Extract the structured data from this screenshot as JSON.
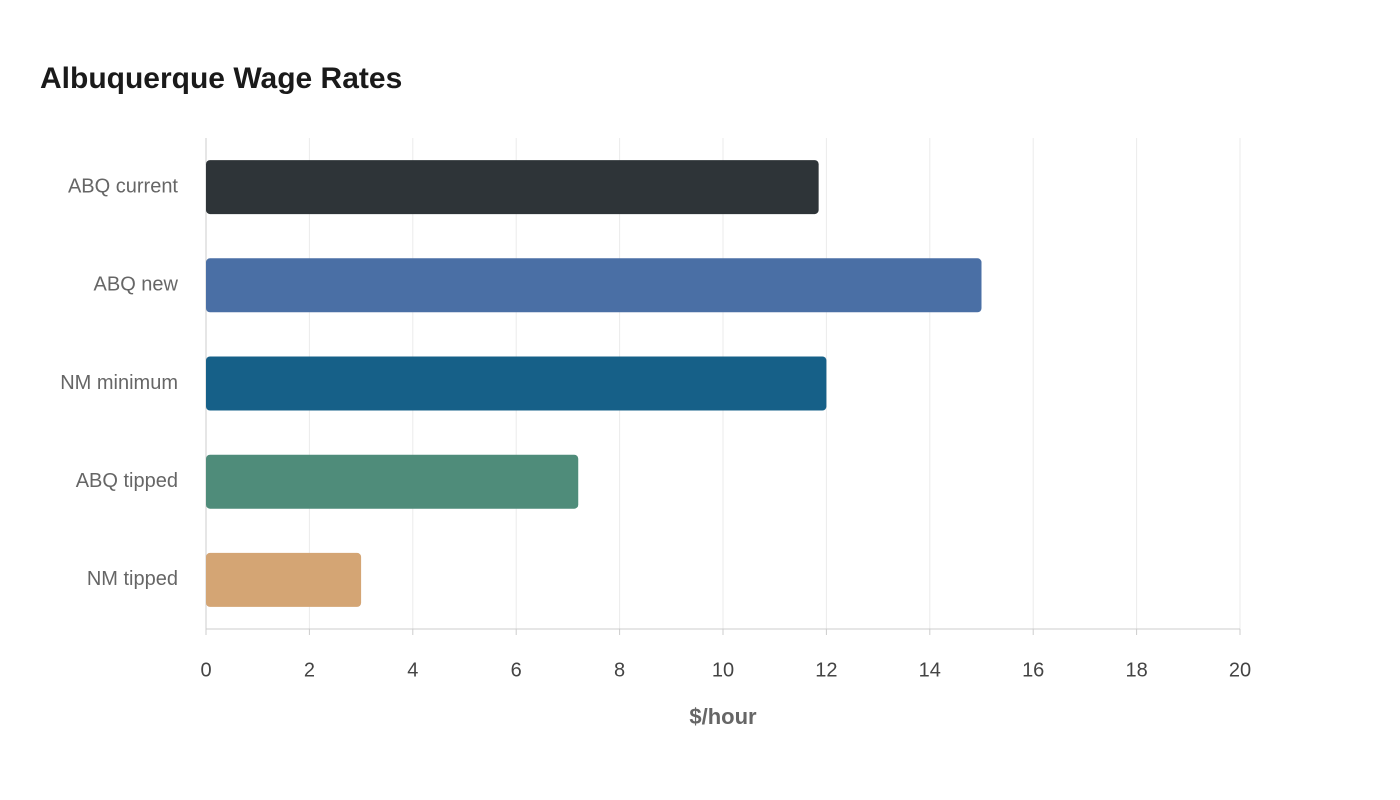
{
  "chart_data": {
    "type": "bar",
    "orientation": "horizontal",
    "title": "Albuquerque Wage Rates",
    "categories": [
      "ABQ current",
      "ABQ new",
      "NM minimum",
      "ABQ tipped",
      "NM tipped"
    ],
    "values": [
      11.85,
      15,
      12,
      7.2,
      3
    ],
    "colors": [
      "#2e3438",
      "#4a6fa5",
      "#166088",
      "#4f8c7a",
      "#d4a574"
    ],
    "xlabel": "$/hour",
    "xlim": [
      0,
      20
    ],
    "xticks": [
      0,
      2,
      4,
      6,
      8,
      10,
      12,
      14,
      16,
      18,
      20
    ],
    "grid": true
  }
}
